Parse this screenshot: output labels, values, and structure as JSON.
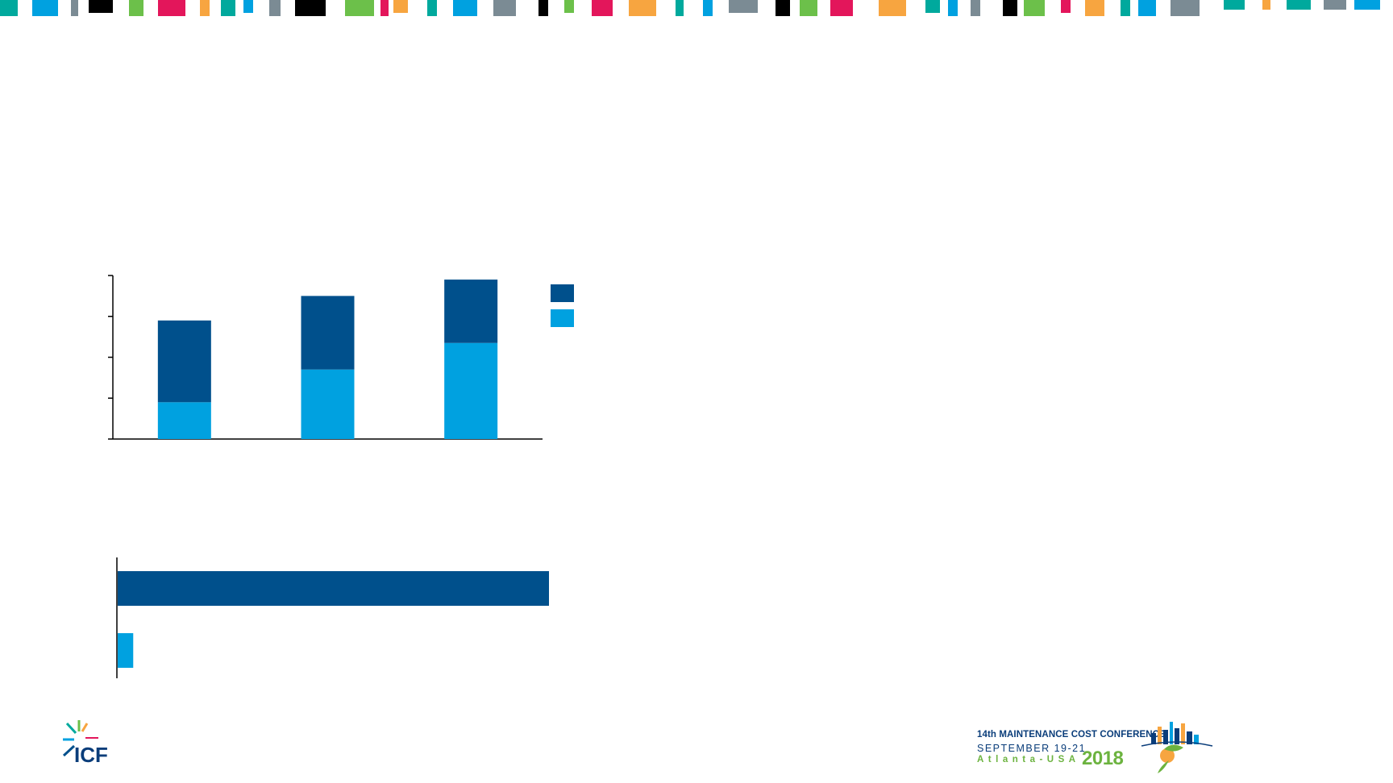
{
  "colors": {
    "dark_blue": "#00508c",
    "light_blue": "#00a1e0",
    "axis": "#000000",
    "strip_palette": [
      "#00a99d",
      "#00a1e0",
      "#7b8b94",
      "#000000",
      "#6cc04a",
      "#e3165b",
      "#f7a540"
    ]
  },
  "chart_data": [
    {
      "type": "bar",
      "stacked": true,
      "orientation": "vertical",
      "title": "",
      "categories": [
        "",
        "",
        ""
      ],
      "series": [
        {
          "color": "#00a1e0",
          "values": [
            0.9,
            1.7,
            2.35
          ]
        },
        {
          "color": "#00508c",
          "values": [
            2.0,
            1.8,
            1.55
          ]
        }
      ],
      "ylim": [
        0,
        4
      ],
      "y_ticks": [
        0,
        1,
        2,
        3,
        4
      ],
      "legend_placement": "top-right",
      "legend_entries": [
        "",
        ""
      ],
      "xlabel": "",
      "ylabel": ""
    },
    {
      "type": "bar",
      "orientation": "horizontal",
      "title": "",
      "categories": [
        "",
        ""
      ],
      "values": [
        100,
        3.6
      ],
      "colors": [
        "#00508c",
        "#00a1e0"
      ],
      "xlim": [
        0,
        100
      ],
      "xlabel": "",
      "ylabel": ""
    }
  ],
  "footer": {
    "icf_logo_text": "ICF",
    "conference": {
      "line1": "14th MAINTENANCE COST CONFERENCE",
      "line2": "SEPTEMBER 19-21",
      "line3": "Atlanta-USA",
      "year": "2018"
    }
  }
}
